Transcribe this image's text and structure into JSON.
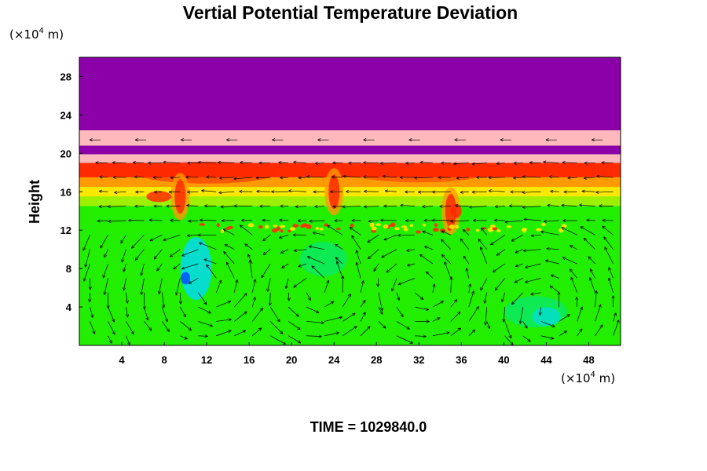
{
  "chart_data": {
    "type": "heatmap",
    "title": "Vertial Potential Temperature Deviation",
    "ylabel": "Height",
    "x_unit": {
      "prefix": "(×10",
      "exp": "4",
      "suffix": " m)"
    },
    "y_unit": {
      "prefix": "(×10",
      "exp": "4",
      "suffix": " m)"
    },
    "x_ticks": [
      4,
      8,
      12,
      16,
      20,
      24,
      28,
      32,
      36,
      40,
      44,
      48
    ],
    "y_ticks": [
      4,
      8,
      12,
      16,
      20,
      24,
      28
    ],
    "xlim": [
      0,
      51
    ],
    "ylim": [
      0,
      30
    ],
    "grid": false,
    "colors": {
      "stratosphere": "#8b00a8",
      "tropopause_band": "#ffb8bc",
      "warm_red": "#ff2a00",
      "orange": "#ff9a00",
      "yellow": "#ffe800",
      "yellow_green": "#9cf000",
      "green": "#22ee00",
      "cyan_green": "#00e88a",
      "cyan": "#00d8ff",
      "blue": "#0055ff"
    },
    "layers": [
      {
        "name": "stratosphere",
        "y_from": 22.4,
        "y_to": 30
      },
      {
        "name": "tropopause_band",
        "y_from": 20.8,
        "y_to": 22.4
      },
      {
        "name": "stratosphere",
        "y_from": 19.9,
        "y_to": 20.8
      },
      {
        "name": "tropopause_band",
        "y_from": 19.0,
        "y_to": 19.9
      },
      {
        "name": "warm_red",
        "y_from": 17.5,
        "y_to": 19.0
      },
      {
        "name": "orange",
        "y_from": 16.5,
        "y_to": 17.5
      },
      {
        "name": "yellow",
        "y_from": 15.5,
        "y_to": 16.5
      },
      {
        "name": "yellow_green",
        "y_from": 14.5,
        "y_to": 15.5
      },
      {
        "name": "green",
        "y_from": 0,
        "y_to": 14.5
      }
    ]
  },
  "time_label": "TIME = 1029840.0"
}
